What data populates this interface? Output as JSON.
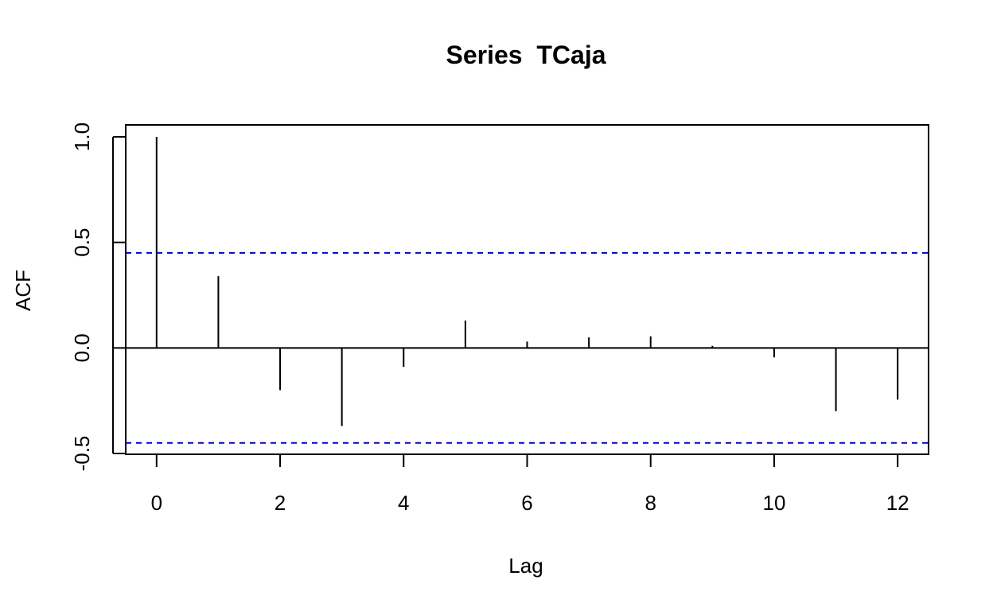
{
  "chart_data": {
    "type": "bar",
    "title": "Series  TCaja",
    "xlabel": "Lag",
    "ylabel": "ACF",
    "x": [
      0,
      1,
      2,
      3,
      4,
      5,
      6,
      7,
      8,
      9,
      10,
      11,
      12
    ],
    "values": [
      1.0,
      0.34,
      -0.2,
      -0.37,
      -0.09,
      0.13,
      0.03,
      0.05,
      0.055,
      0.01,
      -0.045,
      -0.3,
      -0.245
    ],
    "xlim": [
      -0.5,
      12.5
    ],
    "ylim": [
      -0.5,
      1.0
    ],
    "x_ticks": [
      0,
      2,
      4,
      6,
      8,
      10,
      12
    ],
    "x_tick_labels": [
      "0",
      "2",
      "4",
      "6",
      "8",
      "10",
      "12"
    ],
    "y_ticks": [
      -0.5,
      0.0,
      0.5,
      1.0
    ],
    "y_tick_labels": [
      "-0.5",
      "0.0",
      "0.5",
      "1.0"
    ],
    "confidence_band": [
      0.45,
      -0.45
    ],
    "colors": {
      "bars": "#000000",
      "confidence_band": "#0000cd",
      "zero_line": "#000000"
    },
    "grid": false
  }
}
